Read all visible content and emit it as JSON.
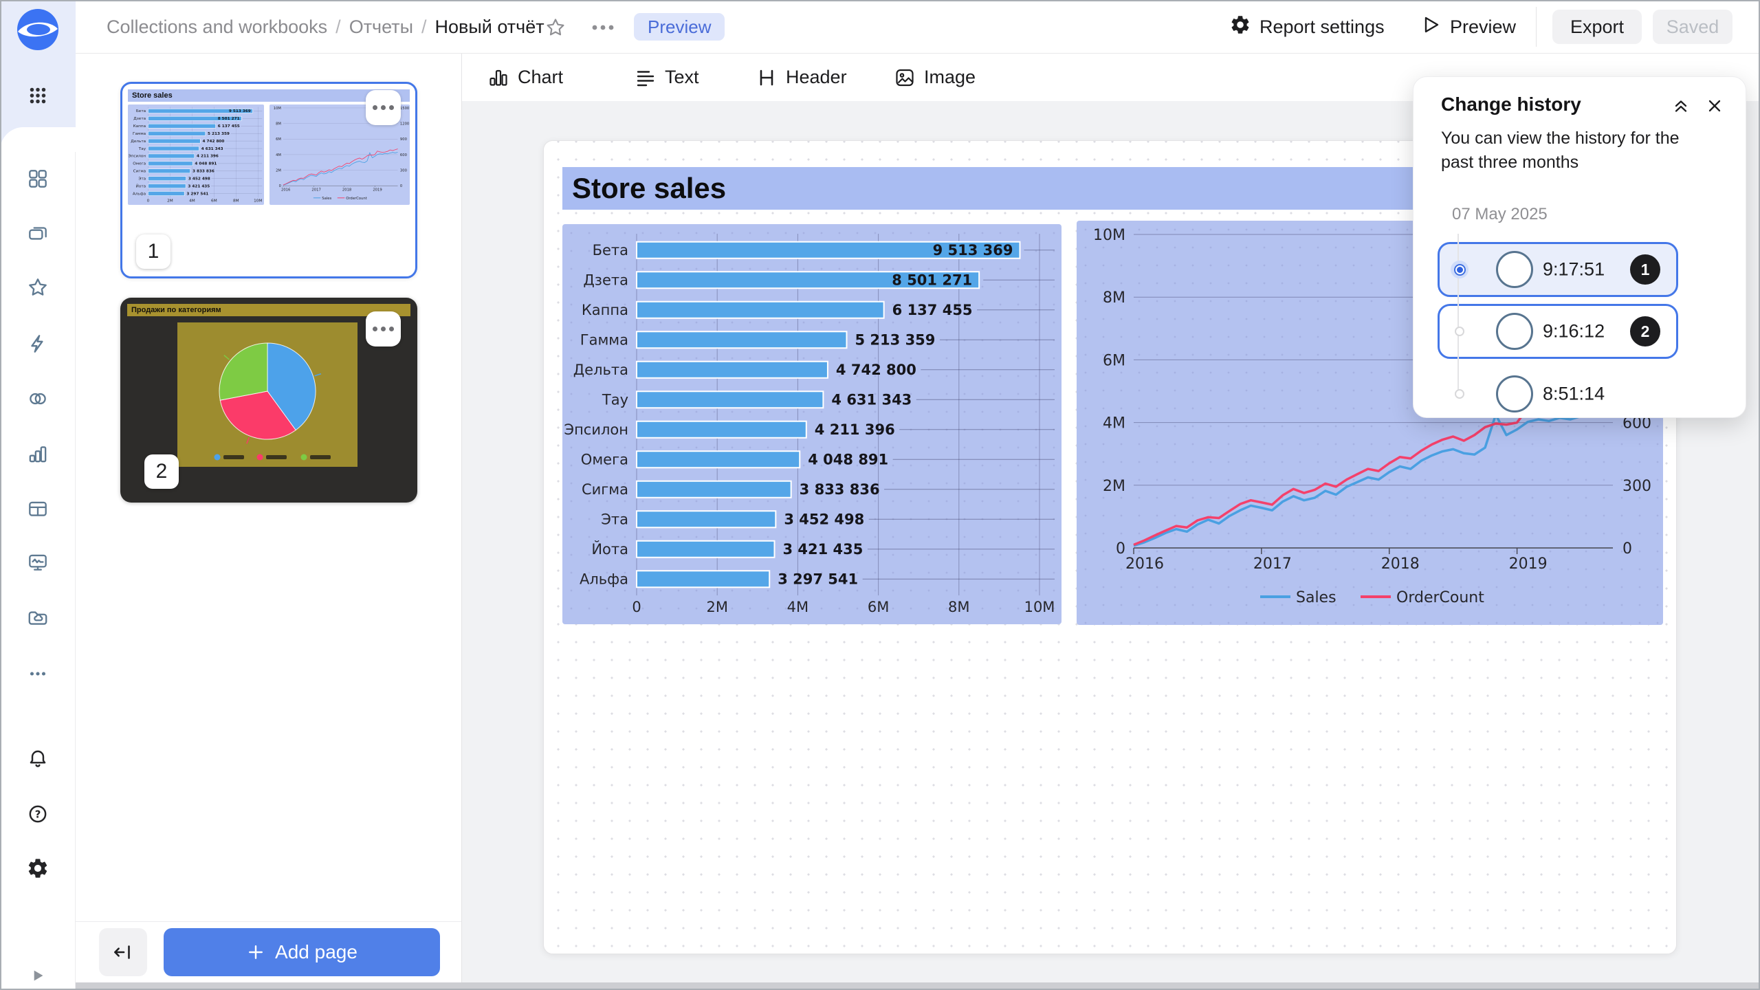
{
  "top_bar": {
    "breadcrumb": [
      "Collections and workbooks",
      "Отчеты",
      "Новый отчёт"
    ],
    "separator": "/",
    "preview_badge": "Preview",
    "report_settings_label": "Report settings",
    "preview_label": "Preview",
    "export_label": "Export",
    "saved_label": "Saved"
  },
  "pages_panel": {
    "page1": {
      "number": "1",
      "title": "Store sales"
    },
    "page2": {
      "number": "2",
      "title": "Продажи по категориям"
    },
    "add_page_label": "Add page"
  },
  "toolbar": {
    "chart_label": "Chart",
    "text_label": "Text",
    "header_label": "Header",
    "image_label": "Image"
  },
  "canvas": {
    "title": "Store sales"
  },
  "change_history": {
    "title": "Change history",
    "description": "You can view the history for the past three months",
    "date": "07 May 2025",
    "entries": [
      {
        "time": "9:17:51",
        "badge": "1",
        "selected": true
      },
      {
        "time": "9:16:12",
        "badge": "2",
        "selected": false
      },
      {
        "time": "8:51:14",
        "badge": "",
        "selected": false
      }
    ]
  },
  "chart_data": [
    {
      "type": "bar",
      "orientation": "horizontal",
      "title": "Store sales",
      "panel_bg": "#b4c2f0",
      "bar_color": "#54a6e8",
      "categories": [
        "Бета",
        "Дзета",
        "Каппа",
        "Гамма",
        "Дельта",
        "Тау",
        "Эпсилон",
        "Омега",
        "Сигма",
        "Эта",
        "Йота",
        "Альфа"
      ],
      "values": [
        9513369,
        8501271,
        6137455,
        5213359,
        4742800,
        4631343,
        4211396,
        4048891,
        3833836,
        3452498,
        3421435,
        3297541
      ],
      "value_labels": [
        "9 513 369",
        "8 501 271",
        "6 137 455",
        "5 213 359",
        "4 742 800",
        "4 631 343",
        "4 211 396",
        "4 048 891",
        "3 833 836",
        "3 452 498",
        "3 421 435",
        "3 297 541"
      ],
      "xlim": [
        0,
        10000000
      ],
      "x_ticks": [
        "0",
        "2M",
        "4M",
        "6M",
        "8M",
        "10M"
      ],
      "grid": true
    },
    {
      "type": "line",
      "panel_bg": "#b4c2f0",
      "x_ticks": [
        "2016",
        "2017",
        "2018",
        "2019"
      ],
      "left_axis": {
        "ticks": [
          "0",
          "2M",
          "4M",
          "6M",
          "8M",
          "10M"
        ],
        "max_m": 10
      },
      "right_axis": {
        "visible_ticks": [
          "0",
          "300",
          "600"
        ],
        "max": 1500,
        "step": 300
      },
      "legend_position": "bottom",
      "series": [
        {
          "name": "Sales",
          "axis": "left",
          "color": "#4aa0e2",
          "values_m": [
            0.07,
            0.18,
            0.32,
            0.48,
            0.6,
            0.52,
            0.75,
            0.9,
            0.78,
            1.02,
            1.2,
            1.35,
            1.28,
            1.2,
            1.48,
            1.65,
            1.52,
            1.6,
            1.82,
            1.7,
            1.95,
            2.1,
            2.25,
            2.18,
            2.42,
            2.6,
            2.52,
            2.78,
            2.95,
            3.08,
            3.15,
            3.02,
            2.98,
            3.2,
            4.25,
            3.6,
            3.78,
            4.02,
            4.1,
            4.05,
            4.15,
            4.1,
            4.2,
            4.28,
            4.22,
            4.3
          ]
        },
        {
          "name": "OrderCount",
          "axis": "right",
          "color": "#f4416b",
          "values": [
            15,
            36,
            60,
            83,
            105,
            98,
            132,
            147,
            143,
            177,
            210,
            228,
            218,
            207,
            252,
            282,
            263,
            278,
            308,
            293,
            327,
            353,
            378,
            368,
            405,
            435,
            428,
            465,
            495,
            518,
            533,
            513,
            540,
            578,
            595,
            590,
            600,
            668,
            653,
            645,
            650,
            663,
            690,
            678,
            695,
            710
          ]
        }
      ]
    },
    {
      "type": "pie",
      "title": "Продажи по категориям",
      "panel_bg": "#9d8c2f",
      "slices": [
        {
          "value": 40,
          "color": "#4da2ea"
        },
        {
          "value": 32,
          "color": "#fb3b69"
        },
        {
          "value": 28,
          "color": "#7ecb44"
        }
      ]
    }
  ]
}
